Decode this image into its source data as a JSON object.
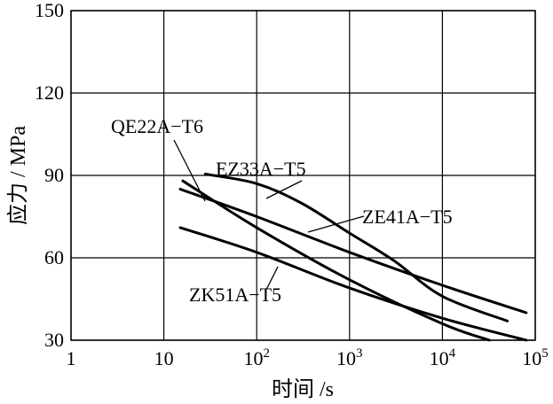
{
  "chart_data": {
    "type": "line",
    "x_scale": "log",
    "xlabel": "时间 /s",
    "ylabel": "应力 / MPa",
    "xlim": [
      1,
      100000
    ],
    "ylim": [
      30,
      150
    ],
    "grid": true,
    "x_ticks": [
      {
        "value": 1,
        "base": "1",
        "exp": ""
      },
      {
        "value": 10,
        "base": "10",
        "exp": ""
      },
      {
        "value": 100,
        "base": "10",
        "exp": "2"
      },
      {
        "value": 1000,
        "base": "10",
        "exp": "3"
      },
      {
        "value": 10000,
        "base": "10",
        "exp": "4"
      },
      {
        "value": 100000,
        "base": "10",
        "exp": "5"
      }
    ],
    "y_ticks": [
      30,
      60,
      90,
      120,
      150
    ],
    "series": [
      {
        "name": "QE22A-T6",
        "points": [
          [
            16,
            88
          ],
          [
            100,
            71
          ],
          [
            1000,
            52
          ],
          [
            10000,
            36
          ],
          [
            32000,
            30
          ]
        ],
        "label_point": [
          22,
          84
        ]
      },
      {
        "name": "EZ33A-T5",
        "points": [
          [
            28,
            90.5
          ],
          [
            100,
            87
          ],
          [
            300,
            80
          ],
          [
            1000,
            69
          ],
          [
            3000,
            59
          ],
          [
            10000,
            46
          ],
          [
            50000,
            37
          ]
        ],
        "label_point": [
          400,
          82
        ]
      },
      {
        "name": "ZE41A-T5",
        "points": [
          [
            15,
            85
          ],
          [
            100,
            75
          ],
          [
            1000,
            62
          ],
          [
            10000,
            50
          ],
          [
            80000,
            40
          ]
        ],
        "label_point": [
          600,
          75
        ]
      },
      {
        "name": "ZK51A-T5",
        "points": [
          [
            15,
            71
          ],
          [
            100,
            62
          ],
          [
            1000,
            49
          ],
          [
            10000,
            38
          ],
          [
            80000,
            30
          ]
        ],
        "label_point": [
          320,
          55
        ]
      }
    ],
    "series_labels": [
      {
        "text": "QE22A−T6"
      },
      {
        "text": "EZ33A−T5"
      },
      {
        "text": "ZE41A−T5"
      },
      {
        "text": "ZK51A−T5"
      }
    ]
  }
}
